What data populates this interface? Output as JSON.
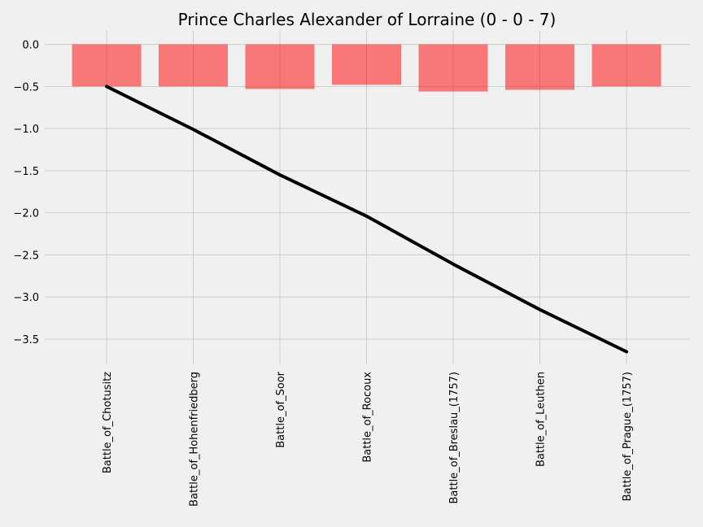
{
  "chart_data": {
    "type": "bar",
    "title": "Prince Charles Alexander of Lorraine (0 - 0 - 7)",
    "xlabel": "",
    "ylabel": "",
    "categories": [
      "Battle_of_Chotusitz",
      "Battle_of_Hohenfriedberg",
      "Battle_of_Soor",
      "Battle_of_Rocoux",
      "Battle_of_Breslau_(1757)",
      "Battle_of_Leuthen",
      "Battle_of_Prague_(1757)"
    ],
    "series": [
      {
        "kind": "bar",
        "color": "#ff0000",
        "opacity": 0.5,
        "values": [
          -0.5,
          -0.5,
          -0.53,
          -0.48,
          -0.56,
          -0.54,
          -0.5
        ]
      },
      {
        "kind": "line",
        "color": "#000000",
        "values": [
          -0.5,
          -1.01,
          -1.55,
          -2.04,
          -2.61,
          -3.15,
          -3.65
        ]
      }
    ],
    "ylim": [
      -3.8,
      0.16
    ],
    "yticks": [
      0.0,
      -0.5,
      -1.0,
      -1.5,
      -2.0,
      -2.5,
      -3.0,
      -3.5
    ],
    "ytick_labels": [
      "0.0",
      "−0.5",
      "−1.0",
      "−1.5",
      "−2.0",
      "−2.5",
      "−3.0",
      "−3.5"
    ],
    "grid": true,
    "legend": "none"
  }
}
